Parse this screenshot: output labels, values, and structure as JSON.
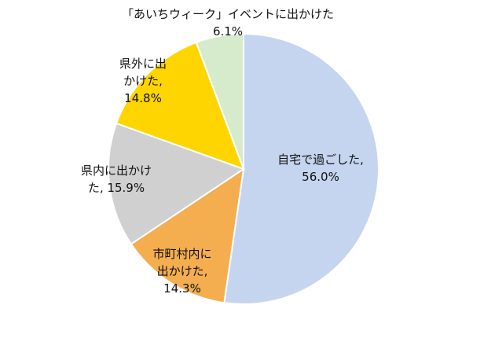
{
  "chart_data": {
    "type": "pie",
    "title": "",
    "slices": [
      {
        "label_lines": [
          "自宅で過ごした,",
          "56.0%"
        ],
        "value": 56.0,
        "color": "#C5D5EF"
      },
      {
        "label_lines": [
          "市町村内に",
          "出かけた,",
          "14.3%"
        ],
        "value": 14.3,
        "color": "#F5AE4F"
      },
      {
        "label_lines": [
          "県内に出かけ",
          "た, 15.9%"
        ],
        "value": 15.9,
        "color": "#D0D0D0"
      },
      {
        "label_lines": [
          "県外に出",
          "かけた,",
          "14.8%"
        ],
        "value": 14.8,
        "color": "#FFD500"
      },
      {
        "label_lines": [
          "「あいちウィーク」イベントに出かけた",
          "6.1%"
        ],
        "value": 6.1,
        "color": "#D5EBCB"
      }
    ],
    "legend": "none"
  }
}
